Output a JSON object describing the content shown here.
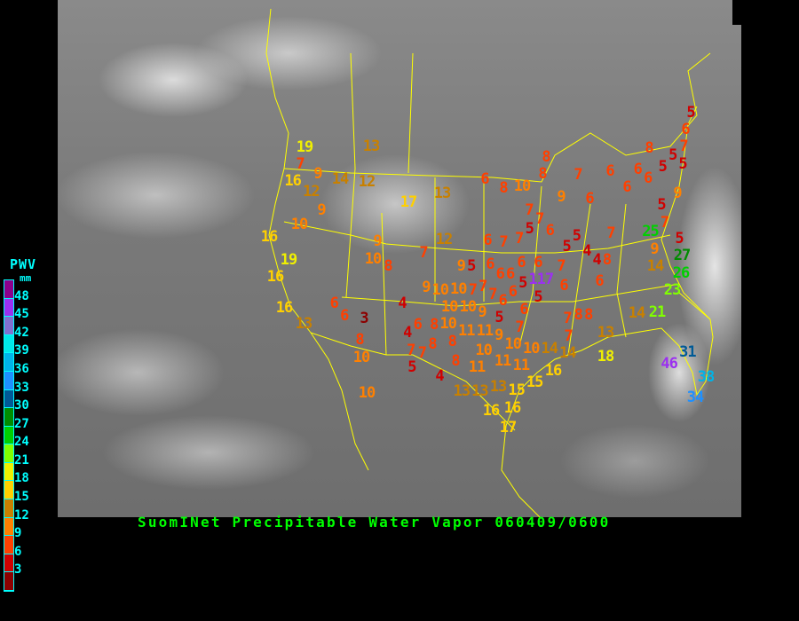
{
  "title": "SuomINet Precipitable Water Vapor 060409/0600",
  "legend": {
    "title": "PWV",
    "unit": "mm",
    "ticks": [
      "48",
      "45",
      "42",
      "39",
      "36",
      "33",
      "30",
      "27",
      "24",
      "21",
      "18",
      "15",
      "12",
      "9",
      "6",
      "3"
    ],
    "colors": [
      "#8c008c",
      "#9b30f0",
      "#8070d0",
      "#00e8e8",
      "#00b4e8",
      "#1e90ff",
      "#005a96",
      "#008c00",
      "#00d000",
      "#80ff00",
      "#f0f000",
      "#ffd000",
      "#c88000",
      "#ff8000",
      "#ff4000",
      "#d00000",
      "#8c0000"
    ]
  },
  "map": {
    "background": "GOES infrared satellite image",
    "boundary_color": "#ffff00",
    "station_values": [
      19,
      13,
      7,
      16,
      9,
      14,
      12,
      12,
      13,
      17,
      9,
      10,
      16,
      12,
      9,
      7,
      10,
      19,
      16,
      9,
      10,
      7,
      6,
      4,
      16,
      6,
      3,
      13,
      6,
      8,
      10,
      10,
      4,
      8,
      8,
      8,
      7,
      5,
      10,
      8,
      4,
      13,
      10,
      8,
      7,
      8,
      10,
      9,
      6,
      6,
      6,
      7,
      4,
      14,
      27,
      26,
      6,
      5,
      5,
      6,
      6,
      10,
      7,
      6,
      23,
      7,
      6,
      9,
      5,
      6,
      7,
      7,
      8,
      14,
      21,
      11,
      11,
      9,
      13,
      7,
      10,
      10,
      10,
      14,
      11,
      14,
      18,
      31,
      46,
      11,
      11,
      16,
      15,
      38,
      13,
      13,
      15,
      34,
      16,
      16,
      17,
      8,
      8,
      7,
      6,
      6,
      6,
      5,
      5,
      5,
      8,
      7,
      8,
      10,
      9,
      6,
      6,
      9,
      7,
      7,
      5,
      6,
      6,
      7,
      7,
      5,
      5,
      4,
      7,
      8,
      25,
      9,
      5,
      5,
      5,
      7,
      5,
      6,
      6,
      117,
      6
    ]
  }
}
